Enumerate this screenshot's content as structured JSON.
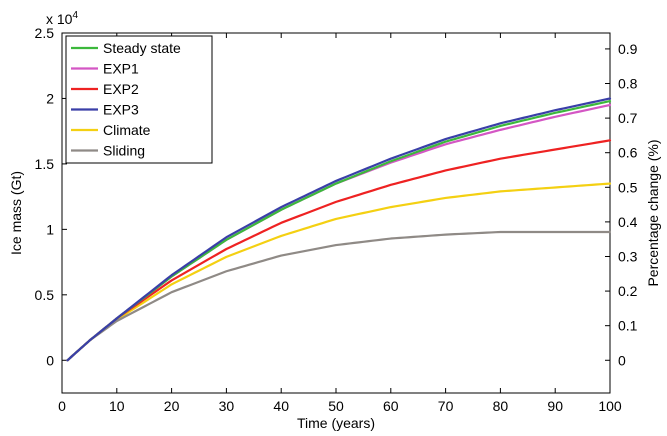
{
  "chart_data": {
    "type": "line",
    "xlabel": "Time (years)",
    "ylabel": "Ice mass (Gt)",
    "y2label": "Percentage change (%)",
    "multiplier": "x 10",
    "multiplier_exp": "4",
    "xlim": [
      0,
      100
    ],
    "ylim": [
      -0.25,
      2.5
    ],
    "y2lim": [
      -0.0946,
      0.946
    ],
    "xticks": [
      "0",
      "10",
      "20",
      "30",
      "40",
      "50",
      "60",
      "70",
      "80",
      "90",
      "100"
    ],
    "yticks": [
      "0",
      "0.5",
      "1",
      "1.5",
      "2",
      "2.5"
    ],
    "y2ticks": [
      "0",
      "0.1",
      "0.2",
      "0.3",
      "0.4",
      "0.5",
      "0.6",
      "0.7",
      "0.8",
      "0.9"
    ],
    "grid": false,
    "legend_position": "top-left",
    "x": [
      1,
      5,
      10,
      20,
      30,
      40,
      50,
      60,
      70,
      80,
      90,
      100
    ],
    "series": [
      {
        "name": "Steady state",
        "color": "#3cb83c",
        "values": [
          0,
          0.15,
          0.32,
          0.64,
          0.92,
          1.15,
          1.35,
          1.52,
          1.67,
          1.79,
          1.89,
          1.98
        ]
      },
      {
        "name": "EXP1",
        "color": "#d456c4",
        "values": [
          0,
          0.15,
          0.32,
          0.64,
          0.92,
          1.15,
          1.35,
          1.51,
          1.65,
          1.76,
          1.86,
          1.95
        ]
      },
      {
        "name": "EXP2",
        "color": "#ee2222",
        "values": [
          0,
          0.15,
          0.32,
          0.61,
          0.85,
          1.05,
          1.21,
          1.34,
          1.45,
          1.54,
          1.61,
          1.68
        ]
      },
      {
        "name": "EXP3",
        "color": "#3a3fa8",
        "values": [
          0,
          0.15,
          0.32,
          0.65,
          0.94,
          1.17,
          1.37,
          1.54,
          1.69,
          1.81,
          1.91,
          2.0
        ]
      },
      {
        "name": "Climate",
        "color": "#f4d012",
        "values": [
          0,
          0.15,
          0.31,
          0.58,
          0.79,
          0.95,
          1.08,
          1.17,
          1.24,
          1.29,
          1.32,
          1.35
        ]
      },
      {
        "name": "Sliding",
        "color": "#8f8a86",
        "values": [
          0,
          0.15,
          0.3,
          0.52,
          0.68,
          0.8,
          0.88,
          0.93,
          0.96,
          0.98,
          0.98,
          0.98
        ]
      }
    ]
  }
}
